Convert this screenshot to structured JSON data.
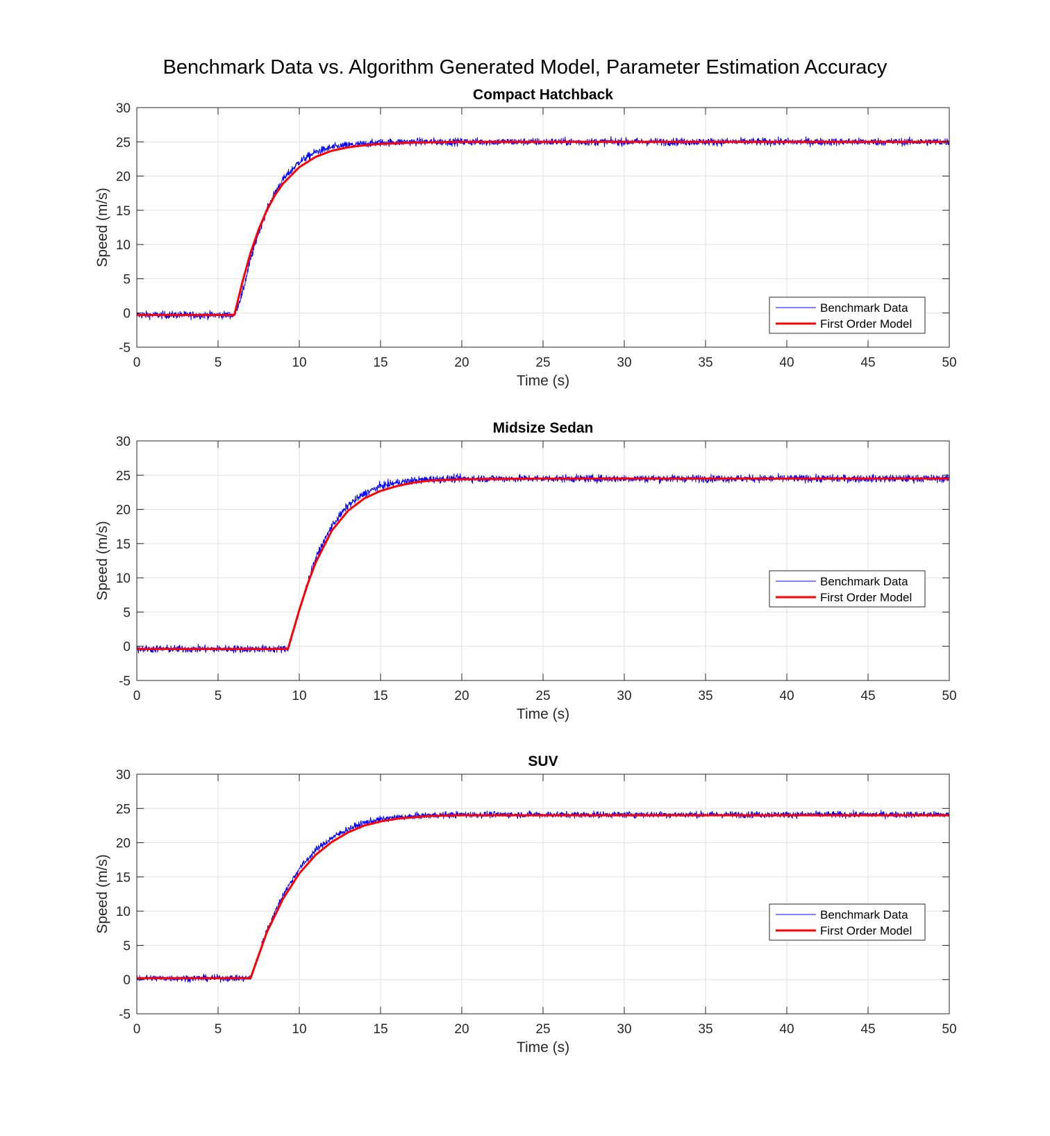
{
  "figure": {
    "title": "Benchmark Data vs. Algorithm Generated Model, Parameter Estimation Accuracy"
  },
  "colors": {
    "benchmark": "#0000ff",
    "model": "#ff0000",
    "grid": "#e0e0e0",
    "axis": "#262626"
  },
  "chart_data": [
    {
      "type": "line",
      "title": "Compact Hatchback",
      "xlabel": "Time (s)",
      "ylabel": "Speed (m/s)",
      "xlim": [
        0,
        50
      ],
      "ylim": [
        -5,
        30
      ],
      "xticks": [
        0,
        5,
        10,
        15,
        20,
        25,
        30,
        35,
        40,
        45,
        50
      ],
      "yticks": [
        -5,
        0,
        5,
        10,
        15,
        20,
        25,
        30
      ],
      "grid": true,
      "legend_position": "lower-right",
      "legend": [
        "Benchmark Data",
        "First Order Model"
      ],
      "series": [
        {
          "name": "Benchmark Data",
          "style": "thin-noisy",
          "x": [
            0,
            4,
            5.9,
            6.0,
            6.5,
            7,
            7.5,
            8,
            8.5,
            9,
            10,
            11,
            12,
            13,
            14,
            15,
            17,
            20,
            25,
            30,
            35,
            40,
            45,
            50
          ],
          "y": [
            -0.3,
            -0.3,
            -0.3,
            -0.3,
            2.9,
            7.8,
            11.8,
            15.0,
            17.6,
            19.5,
            22.1,
            23.5,
            24.2,
            24.5,
            24.7,
            24.9,
            25.0,
            25.0,
            25.0,
            25.0,
            25.0,
            25.0,
            25.0,
            25.0
          ],
          "noise_amplitude": 0.7
        },
        {
          "name": "First Order Model",
          "style": "thick",
          "x": [
            0,
            5,
            5.9,
            6.0,
            6.5,
            7,
            7.5,
            8,
            8.5,
            9,
            10,
            11,
            12,
            13,
            14,
            15,
            17,
            20,
            25,
            30,
            35,
            40,
            45,
            50
          ],
          "y": [
            -0.3,
            -0.3,
            -0.3,
            -0.3,
            4.5,
            8.8,
            12.2,
            15.0,
            17.2,
            18.9,
            21.3,
            22.8,
            23.7,
            24.2,
            24.5,
            24.7,
            24.9,
            25.0,
            25.0,
            25.0,
            25.0,
            25.0,
            25.0,
            25.0
          ]
        }
      ]
    },
    {
      "type": "line",
      "title": "Midsize Sedan",
      "xlabel": "Time (s)",
      "ylabel": "Speed (m/s)",
      "xlim": [
        0,
        50
      ],
      "ylim": [
        -5,
        30
      ],
      "xticks": [
        0,
        5,
        10,
        15,
        20,
        25,
        30,
        35,
        40,
        45,
        50
      ],
      "yticks": [
        -5,
        0,
        5,
        10,
        15,
        20,
        25,
        30
      ],
      "grid": true,
      "legend_position": "right",
      "legend": [
        "Benchmark Data",
        "First Order Model"
      ],
      "series": [
        {
          "name": "Benchmark Data",
          "style": "thin-noisy",
          "x": [
            0,
            5,
            9.2,
            9.3,
            10,
            10.5,
            11,
            12,
            13,
            14,
            15,
            16,
            17,
            18,
            20,
            25,
            30,
            35,
            40,
            45,
            50
          ],
          "y": [
            -0.4,
            -0.4,
            -0.4,
            -0.4,
            5.0,
            9.2,
            12.8,
            17.6,
            20.6,
            22.3,
            23.4,
            23.9,
            24.2,
            24.4,
            24.5,
            24.5,
            24.5,
            24.5,
            24.5,
            24.5,
            24.5
          ],
          "noise_amplitude": 0.7
        },
        {
          "name": "First Order Model",
          "style": "thick",
          "x": [
            0,
            5,
            9.2,
            9.3,
            10,
            10.5,
            11,
            12,
            13,
            14,
            15,
            16,
            17,
            18,
            20,
            25,
            30,
            35,
            40,
            45,
            50
          ],
          "y": [
            -0.4,
            -0.4,
            -0.4,
            -0.4,
            5.3,
            9.0,
            12.2,
            16.9,
            19.8,
            21.6,
            22.7,
            23.4,
            23.9,
            24.2,
            24.4,
            24.5,
            24.5,
            24.5,
            24.5,
            24.5,
            24.5
          ]
        }
      ]
    },
    {
      "type": "line",
      "title": "SUV",
      "xlabel": "Time (s)",
      "ylabel": "Speed (m/s)",
      "xlim": [
        0,
        50
      ],
      "ylim": [
        -5,
        30
      ],
      "xticks": [
        0,
        5,
        10,
        15,
        20,
        25,
        30,
        35,
        40,
        45,
        50
      ],
      "yticks": [
        -5,
        0,
        5,
        10,
        15,
        20,
        25,
        30
      ],
      "grid": true,
      "legend_position": "right",
      "legend": [
        "Benchmark Data",
        "First Order Model"
      ],
      "series": [
        {
          "name": "Benchmark Data",
          "style": "thin-noisy",
          "x": [
            0,
            5,
            6.9,
            7.0,
            8,
            9,
            10,
            11,
            12,
            13,
            14,
            15,
            16,
            18,
            20,
            25,
            30,
            35,
            40,
            45,
            50
          ],
          "y": [
            0.2,
            0.2,
            0.2,
            0.2,
            7.2,
            12.4,
            16.2,
            18.9,
            20.7,
            22.0,
            22.9,
            23.4,
            23.7,
            24.0,
            24.1,
            24.1,
            24.1,
            24.1,
            24.1,
            24.1,
            24.1
          ],
          "noise_amplitude": 0.6
        },
        {
          "name": "First Order Model",
          "style": "thick",
          "x": [
            0,
            5,
            6.9,
            7.0,
            8,
            9,
            10,
            11,
            12,
            13,
            14,
            15,
            16,
            18,
            20,
            25,
            30,
            35,
            40,
            45,
            50
          ],
          "y": [
            0.2,
            0.2,
            0.2,
            0.2,
            6.9,
            11.8,
            15.5,
            18.2,
            20.1,
            21.5,
            22.5,
            23.1,
            23.5,
            23.9,
            24.0,
            24.0,
            24.0,
            24.0,
            24.0,
            24.0,
            24.0
          ]
        }
      ]
    }
  ]
}
